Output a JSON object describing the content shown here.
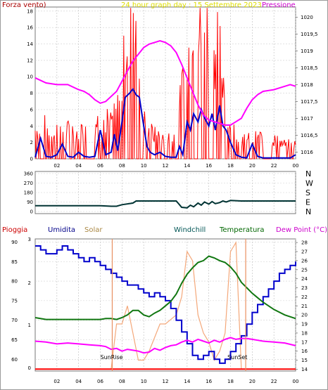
{
  "colors": {
    "wind": "#ff0000",
    "gust": "#0000cc",
    "pressure": "#ff00ff",
    "windDir": "#003333",
    "rain": "#ff0000",
    "humidity": "#0000cc",
    "solar": "#f4a87a",
    "windchill": "#005555",
    "temperature": "#117711",
    "dewpoint": "#ff00ff",
    "title": "#ffff33",
    "rainLabel": "#cc0000",
    "humLabel": "#000088",
    "solarLabel": "#aa8844",
    "windchillLabel": "#005555",
    "tempLabel": "#006600",
    "dewLabel": "#cc00cc",
    "sun": "#e89060"
  },
  "labels": {
    "wind_axis": "Forza vento)",
    "title": "24 hour graph day : 15 Settembre 2023",
    "pressure_axis": "Pressione",
    "rain": "Pioggia",
    "humidity": "Umidita",
    "solar": "Solar",
    "windchill": "Windchill",
    "temperature": "Temperatura",
    "dewpoint": "Dew Point (°C)",
    "sunrise": "SunRise",
    "sunset": "SunSet",
    "directions": [
      "N",
      "W",
      "S",
      "E",
      "N"
    ]
  },
  "chart_data": [
    {
      "type": "line",
      "panel": "wind_pressure",
      "xlabel": "",
      "x_ticks": [
        "02",
        "04",
        "06",
        "08",
        "10",
        "12",
        "14",
        "16",
        "18",
        "20",
        "22",
        "00"
      ],
      "y_left_ticks": [
        "0",
        "2",
        "4",
        "6",
        "8",
        "10",
        "12",
        "14",
        "16",
        "18"
      ],
      "y_right_ticks": [
        "1016",
        "1016,5",
        "1017",
        "1017,5",
        "1018",
        "1018,5",
        "1019",
        "1019,5",
        "1020"
      ],
      "ylim_left": [
        0,
        18.5
      ],
      "ylim_right": [
        1015.8,
        1020.3
      ],
      "series": [
        {
          "name": "Forza vento",
          "axis": "left",
          "style": "spiky",
          "x": [
            0,
            1,
            2,
            3,
            4,
            5,
            6,
            7,
            7.5,
            8,
            8.5,
            9,
            9.3,
            9.6,
            10,
            10.5,
            11,
            12,
            13,
            13.5,
            14,
            14.5,
            15,
            15.5,
            16,
            16.5,
            17,
            17.5,
            18,
            18.5,
            19,
            20,
            20.5,
            21,
            22,
            23,
            24
          ],
          "y": [
            3,
            3.5,
            3,
            3,
            3,
            3.5,
            4,
            4,
            4.5,
            8,
            13,
            17,
            15,
            12,
            4,
            3,
            2.5,
            2,
            2.5,
            7,
            10,
            11,
            13,
            14,
            13,
            12,
            11,
            7,
            4,
            2.5,
            2,
            2,
            2.5,
            2,
            2,
            1.5,
            1.5
          ]
        },
        {
          "x": [
            0,
            0.5,
            1,
            1.5,
            2,
            2.5,
            3,
            3.5,
            4,
            4.5,
            5,
            5.5,
            6,
            6.5,
            7,
            7.3,
            7.6,
            8,
            8.3,
            8.7,
            9,
            9.3,
            9.6,
            10,
            10.3,
            10.6,
            11,
            11.5,
            12,
            12.5,
            13,
            13.3,
            13.6,
            14,
            14.3,
            14.6,
            15,
            15.3,
            15.6,
            16,
            16.3,
            16.6,
            17,
            17.3,
            17.6,
            18,
            18.5,
            19,
            19.5,
            20,
            20.5,
            21,
            21.5,
            22,
            22.5,
            23,
            23.5,
            24
          ],
          "y": [
            0.2,
            2.5,
            0.3,
            0.2,
            0.5,
            1.8,
            0.3,
            0.2,
            0.8,
            0.3,
            0.2,
            0.3,
            3.5,
            0.5,
            0.8,
            3.0,
            1.0,
            4.5,
            7.5,
            8.0,
            8.5,
            7.8,
            7.5,
            4.0,
            1.5,
            0.8,
            0.5,
            0.8,
            0.3,
            0.2,
            0.2,
            1.5,
            0.5,
            4.5,
            3.5,
            5.5,
            4.5,
            6.0,
            5.0,
            4.0,
            5.5,
            3.5,
            6.5,
            4.0,
            3.5,
            2.0,
            0.5,
            0.2,
            0.1,
            1.8,
            0.3,
            0.1,
            0.1,
            0.1,
            0.1,
            0.1,
            0.1,
            0.5
          ],
          "axis": "left",
          "style": "line"
        },
        {
          "x": [
            0,
            1,
            2,
            3,
            4,
            4.5,
            5,
            5.5,
            6,
            6.5,
            7,
            7.5,
            8,
            8.5,
            9,
            9.5,
            10,
            10.5,
            11,
            11.5,
            12,
            12.5,
            13,
            13.5,
            14,
            14.5,
            15,
            15.5,
            16,
            16.5,
            17,
            17.5,
            18,
            18.5,
            19,
            19.5,
            20,
            20.5,
            21,
            22,
            22.5,
            23,
            23.5,
            24
          ],
          "y": [
            1018.2,
            1018.05,
            1018.0,
            1018.0,
            1017.85,
            1017.8,
            1017.7,
            1017.55,
            1017.45,
            1017.5,
            1017.65,
            1017.8,
            1018.1,
            1018.4,
            1018.7,
            1018.9,
            1019.1,
            1019.2,
            1019.25,
            1019.3,
            1019.25,
            1019.15,
            1018.95,
            1018.6,
            1018.2,
            1017.8,
            1017.4,
            1017.1,
            1016.95,
            1016.9,
            1016.85,
            1016.8,
            1016.8,
            1016.9,
            1017.0,
            1017.3,
            1017.55,
            1017.7,
            1017.8,
            1017.85,
            1017.9,
            1017.95,
            1018.0,
            1017.95
          ],
          "axis": "right"
        }
      ]
    },
    {
      "type": "line",
      "panel": "wind_direction",
      "y_ticks": [
        "0",
        "90",
        "180",
        "270",
        "360"
      ],
      "ylim": [
        0,
        360
      ],
      "series": [
        {
          "x": [
            0,
            3,
            6,
            7,
            7.5,
            8,
            9,
            9.3,
            10,
            12,
            13,
            13.5,
            14,
            14.3,
            14.6,
            15,
            15.3,
            15.6,
            16,
            16.3,
            16.6,
            17,
            17.3,
            17.6,
            18,
            19,
            20,
            22,
            24
          ],
          "y": [
            55,
            55,
            55,
            50,
            50,
            65,
            80,
            100,
            100,
            100,
            100,
            40,
            35,
            60,
            45,
            80,
            60,
            90,
            70,
            95,
            75,
            85,
            100,
            90,
            105,
            100,
            100,
            100,
            100
          ]
        }
      ]
    },
    {
      "type": "line",
      "panel": "humidity_temperature",
      "y_left_ticks": [
        "60",
        "65",
        "70",
        "75",
        "80",
        "85",
        "90"
      ],
      "y_right_ticks": [
        "14",
        "15",
        "16",
        "17",
        "18",
        "19",
        "20",
        "21",
        "22",
        "23",
        "24",
        "25",
        "26",
        "27",
        "28"
      ],
      "ylim_left": [
        57,
        90.8
      ],
      "ylim_right": [
        13.8,
        28.4
      ],
      "series": [
        {
          "x": [
            0,
            0.5,
            1,
            1.5,
            2,
            2.5,
            3,
            3.5,
            4,
            4.5,
            5,
            5.5,
            6,
            6.5,
            7,
            7.5,
            8,
            8.5,
            9,
            9.5,
            10,
            10.5,
            11,
            11.5,
            12,
            12.5,
            13,
            13.5,
            14,
            14.5,
            15,
            15.5,
            16,
            16.5,
            17,
            17.5,
            18,
            18.5,
            19,
            19.5,
            20,
            20.5,
            21,
            21.5,
            22,
            22.5,
            23,
            23.5,
            24
          ],
          "y": [
            89,
            88,
            87,
            87,
            88,
            89,
            88,
            87,
            86,
            85,
            86,
            85,
            84,
            83,
            82,
            81,
            80,
            79,
            79,
            78,
            77,
            76,
            77,
            76,
            75,
            73,
            70,
            67,
            64,
            61,
            60,
            61,
            62,
            60,
            59,
            60,
            62,
            64,
            66,
            69,
            72,
            74,
            76,
            78,
            80,
            82,
            83,
            84,
            85
          ],
          "axis": "left",
          "style": "step"
        },
        {
          "x": [
            0,
            1,
            2,
            3,
            4,
            5,
            6,
            6.5,
            7,
            7.5,
            8,
            8.5,
            9,
            9.5,
            10,
            10.5,
            11,
            11.5,
            12,
            12.5,
            13,
            13.5,
            14,
            14.5,
            15,
            15.5,
            16,
            16.5,
            17,
            17.5,
            18,
            18.5,
            19,
            19.5,
            20,
            20.5,
            21,
            22,
            23,
            24
          ],
          "y": [
            19.7,
            19.5,
            19.5,
            19.5,
            19.5,
            19.5,
            19.5,
            19.6,
            19.6,
            19.5,
            19.7,
            20.0,
            20.5,
            20.5,
            20.0,
            19.8,
            20.2,
            20.5,
            21.0,
            21.5,
            22.3,
            23.5,
            24.5,
            25.2,
            25.8,
            26.0,
            26.5,
            26.3,
            26.0,
            25.8,
            25.3,
            24.6,
            23.6,
            23.0,
            22.4,
            21.9,
            21.4,
            20.6,
            20.0,
            19.6
          ],
          "axis": "right"
        },
        {
          "x": [
            0,
            1,
            2,
            3,
            4,
            5,
            6,
            6.5,
            7,
            7.5,
            8,
            8.5,
            9,
            9.5,
            10,
            10.5,
            11,
            11.5,
            12,
            12.5,
            13,
            13.5,
            14,
            14.5,
            15,
            15.5,
            16,
            16.5,
            17,
            17.5,
            18,
            18.5,
            19,
            19.5,
            20,
            20.5,
            21,
            22,
            23,
            24
          ],
          "y": [
            17.1,
            17.0,
            16.8,
            16.9,
            16.8,
            16.7,
            16.6,
            16.5,
            16.2,
            16.3,
            16.0,
            16.2,
            16.1,
            16.0,
            15.8,
            15.9,
            16.3,
            16.1,
            16.4,
            16.6,
            16.7,
            17.0,
            17.2,
            17.0,
            17.3,
            17.1,
            16.9,
            17.2,
            17.0,
            17.3,
            17.5,
            17.3,
            17.4,
            17.4,
            17.3,
            17.2,
            17.1,
            17.0,
            16.9,
            16.6
          ],
          "axis": "right"
        },
        {
          "x": [
            0,
            1,
            2,
            3,
            4,
            5,
            6,
            7,
            7.5,
            8,
            8.5,
            9,
            9.5,
            10,
            10.5,
            11,
            11.5,
            12,
            12.5,
            13,
            13.5,
            14,
            14.5,
            15,
            15.5,
            16,
            16.5,
            17,
            17.5,
            18,
            18.5,
            19,
            19.5,
            20,
            24
          ],
          "y": [
            14,
            14,
            14,
            14,
            14,
            14,
            14,
            14,
            19,
            19,
            21,
            18,
            15,
            15,
            16,
            17.5,
            19,
            19,
            19.5,
            20,
            22,
            27,
            26,
            20,
            18,
            17,
            15,
            16,
            18,
            27,
            28,
            14,
            14,
            14,
            14
          ],
          "axis": "right"
        },
        {
          "x": [
            0,
            24
          ],
          "y": [
            57.5,
            57.5
          ],
          "axis": "left"
        }
      ]
    }
  ]
}
